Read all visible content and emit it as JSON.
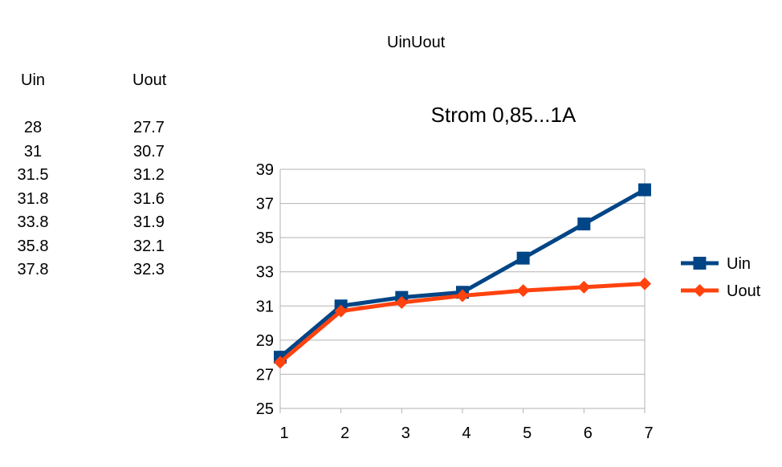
{
  "sheet": {
    "title": "UinUout"
  },
  "table": {
    "headers": [
      "Uin",
      "Uout"
    ],
    "uin": [
      "28",
      "31",
      "31.5",
      "31.8",
      "33.8",
      "35.8",
      "37.8"
    ],
    "uout": [
      "27.7",
      "30.7",
      "31.2",
      "31.6",
      "31.9",
      "32.1",
      "32.3"
    ]
  },
  "chart_data": {
    "type": "line",
    "title": "Strom 0,85...1A",
    "x": [
      1,
      2,
      3,
      4,
      5,
      6,
      7
    ],
    "series": [
      {
        "name": "Uin",
        "values": [
          28,
          31,
          31.5,
          31.8,
          33.8,
          35.8,
          37.8
        ],
        "color": "#004586",
        "marker": "square"
      },
      {
        "name": "Uout",
        "values": [
          27.7,
          30.7,
          31.2,
          31.6,
          31.9,
          32.1,
          32.3
        ],
        "color": "#ff420e",
        "marker": "diamond"
      }
    ],
    "ylim": [
      25,
      39
    ],
    "yticks": [
      25,
      27,
      29,
      31,
      33,
      35,
      37,
      39
    ],
    "xlabel": "",
    "ylabel": "",
    "grid": "horizontal",
    "legend": "right"
  }
}
